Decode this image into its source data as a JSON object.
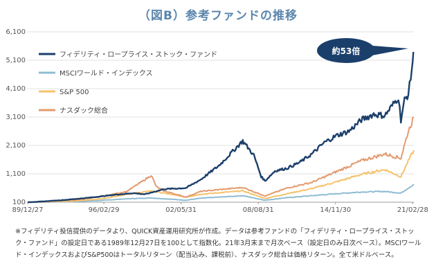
{
  "chart_data": {
    "type": "line",
    "title": "（図B）参考ファンドの推移",
    "xlabel": "",
    "ylabel": "",
    "ylim": [
      100,
      6100
    ],
    "yticks": [
      "6,100",
      "5,100",
      "4,100",
      "3,100",
      "2,100",
      "1,100",
      "100"
    ],
    "ytick_values": [
      6100,
      5100,
      4100,
      3100,
      2100,
      1100,
      100
    ],
    "xticks": [
      "89/12/27",
      "96/02/29",
      "02/05/31",
      "08/08/31",
      "14/11/30",
      "21/02/28"
    ],
    "xtick_values": [
      1989.99,
      1996.16,
      2002.41,
      2008.66,
      2014.91,
      2021.16
    ],
    "xlim": [
      1989.99,
      2021.25
    ],
    "legend_position": "top-left",
    "annotation": "約53倍",
    "series": [
      {
        "name": "フィデリティ・ロープライス・ストック・ファンド",
        "color": "#1b3f6b",
        "x": [
          1989.99,
          1991,
          1993,
          1995,
          1997,
          1998.5,
          1999.5,
          2001,
          2002.8,
          2004,
          2005.5,
          2007.4,
          2008.3,
          2008.9,
          2009.2,
          2010,
          2011,
          2012,
          2013,
          2014,
          2015,
          2016,
          2017,
          2018,
          2018.9,
          2019.5,
          2020.0,
          2020.2,
          2020.5,
          2020.8,
          2021.0,
          2021.16,
          2021.25
        ],
        "y": [
          100,
          120,
          180,
          260,
          360,
          420,
          380,
          560,
          600,
          900,
          1400,
          2260,
          1750,
          1000,
          850,
          1200,
          1300,
          1500,
          1800,
          2200,
          2450,
          2600,
          3000,
          3200,
          3150,
          3500,
          3800,
          3000,
          3700,
          3900,
          4500,
          5100,
          5350
        ]
      },
      {
        "name": "MSCIワールド・インデックス",
        "color": "#8fbcd4",
        "x": [
          1989.99,
          1992,
          1994,
          1996,
          1998,
          2000,
          2002.8,
          2004,
          2007.4,
          2009.2,
          2011,
          2013,
          2015,
          2017,
          2018.9,
          2020.2,
          2020.8,
          2021.25
        ],
        "y": [
          100,
          105,
          130,
          165,
          220,
          250,
          170,
          240,
          330,
          170,
          260,
          330,
          400,
          460,
          480,
          420,
          600,
          730
        ]
      },
      {
        "name": "S&P 500",
        "color": "#f5c26b",
        "x": [
          1989.99,
          1992,
          1994,
          1996,
          1998,
          2000,
          2002.8,
          2004,
          2007.4,
          2009.2,
          2011,
          2013,
          2015,
          2017,
          2018.9,
          2020.2,
          2020.8,
          2021.25
        ],
        "y": [
          100,
          120,
          150,
          220,
          380,
          500,
          280,
          380,
          500,
          230,
          400,
          580,
          820,
          1080,
          1250,
          1000,
          1550,
          1930
        ]
      },
      {
        "name": "ナスダック総合",
        "color": "#e39a6e",
        "x": [
          1989.99,
          1992,
          1994,
          1996,
          1998,
          1999.5,
          2000.0,
          2000.4,
          2001,
          2002.8,
          2004,
          2007.4,
          2009.2,
          2011,
          2013,
          2015,
          2017,
          2018.9,
          2020.2,
          2020.8,
          2021.25
        ],
        "y": [
          100,
          140,
          190,
          300,
          480,
          900,
          1050,
          650,
          500,
          280,
          480,
          620,
          320,
          600,
          800,
          1180,
          1560,
          1800,
          1650,
          2600,
          3100
        ]
      }
    ]
  },
  "footnote": "※フィデリティ投信提供のデータより、QUICK資産運用研究所が作成。データは参考ファンドの「フィデリティ・ロープライス・ストック・ファンド」の設定日である1989年12月27日を100として指数化。21年3月末まで月次ベース（設定日のみ日次ベース）。MSCIワールド・インデックスおよびS&P500はトータルリターン（配当込み、課税前）、ナスダック総合は価格リターン。全て米ドルベース。"
}
